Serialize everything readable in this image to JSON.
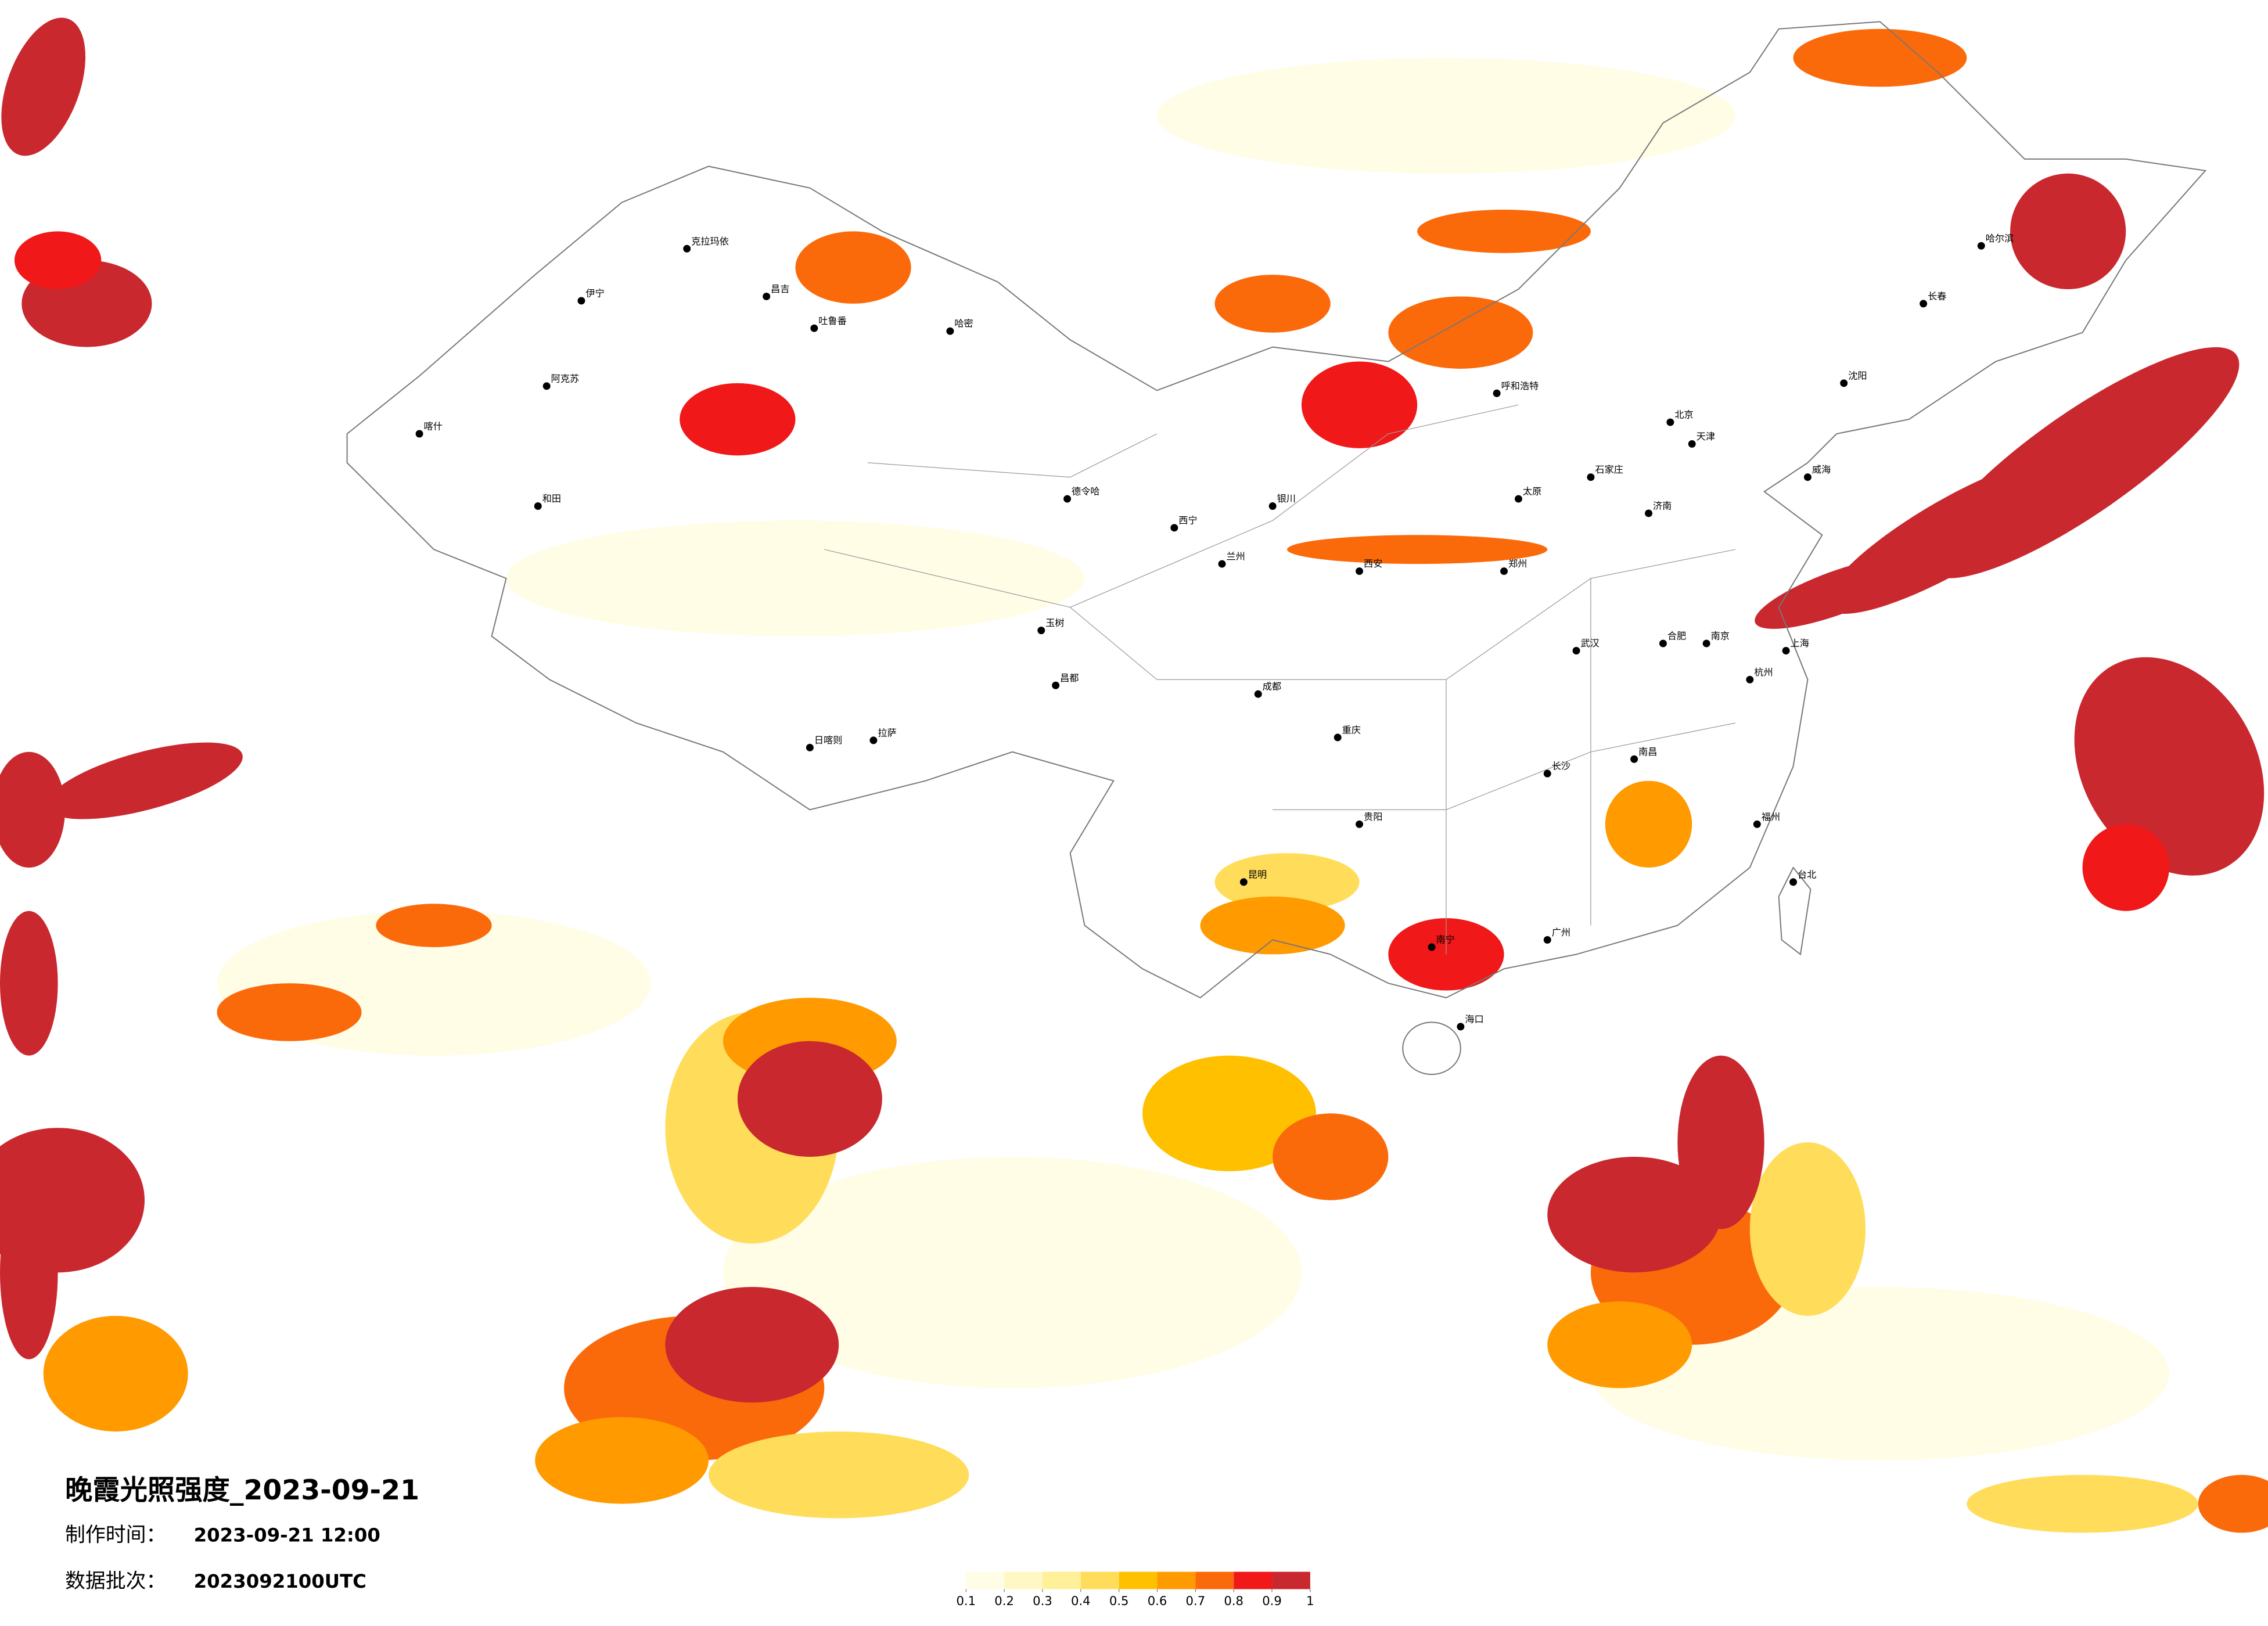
{
  "map": {
    "title": "晚霞光照强度_2023-09-21",
    "made_label": "制作时间：",
    "made_time": "2023-09-21 12:00",
    "batch_label": "数据批次：",
    "batch": "2023092100UTC",
    "legend": {
      "ticks": [
        0.1,
        0.2,
        0.3,
        0.4,
        0.5,
        0.6,
        0.7,
        0.8,
        0.9,
        1
      ],
      "colors": [
        "#fffde6",
        "#fff8c4",
        "#fff09a",
        "#ffdd5a",
        "#ffc000",
        "#ff9a00",
        "#fb6a0a",
        "#f01818",
        "#c8282e"
      ]
    },
    "cities": [
      "克拉玛依",
      "伊宁",
      "昌吉",
      "吐鲁番",
      "哈密",
      "阿克苏",
      "和田",
      "喀什",
      "德令哈",
      "拉萨",
      "日喀则",
      "昌都",
      "玉树",
      "西宁",
      "兰州",
      "银川",
      "呼和浩特",
      "北京",
      "天津",
      "石家庄",
      "太原",
      "济南",
      "郑州",
      "西安",
      "成都",
      "重庆",
      "武汉",
      "长沙",
      "南昌",
      "杭州",
      "上海",
      "南京",
      "合肥",
      "福州",
      "广州",
      "南宁",
      "贵阳",
      "昆明",
      "海口",
      "台北",
      "哈尔滨",
      "长春",
      "沈阳",
      "威海"
    ]
  }
}
